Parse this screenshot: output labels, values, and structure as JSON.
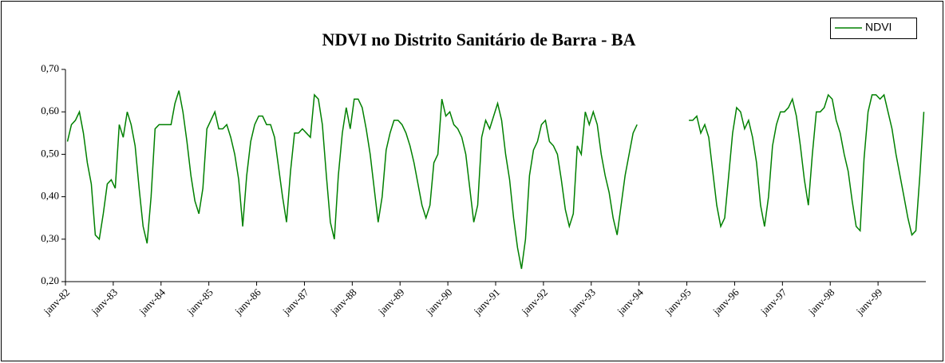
{
  "chart_data": {
    "type": "line",
    "title": "NDVI no Distrito Sanitário de Barra - BA",
    "categories": [
      "janv-82",
      null,
      null,
      null,
      null,
      null,
      null,
      null,
      null,
      null,
      null,
      null,
      "janv-83",
      null,
      null,
      null,
      null,
      null,
      null,
      null,
      null,
      null,
      null,
      null,
      "janv-84",
      null,
      null,
      null,
      null,
      null,
      null,
      null,
      null,
      null,
      null,
      null,
      "janv-85",
      null,
      null,
      null,
      null,
      null,
      null,
      null,
      null,
      null,
      null,
      null,
      "janv-86",
      null,
      null,
      null,
      null,
      null,
      null,
      null,
      null,
      null,
      null,
      null,
      "janv-87",
      null,
      null,
      null,
      null,
      null,
      null,
      null,
      null,
      null,
      null,
      null,
      "janv-88",
      null,
      null,
      null,
      null,
      null,
      null,
      null,
      null,
      null,
      null,
      null,
      "janv-89",
      null,
      null,
      null,
      null,
      null,
      null,
      null,
      null,
      null,
      null,
      null,
      "janv-90",
      null,
      null,
      null,
      null,
      null,
      null,
      null,
      null,
      null,
      null,
      null,
      "janv-91",
      null,
      null,
      null,
      null,
      null,
      null,
      null,
      null,
      null,
      null,
      null,
      "janv-92",
      null,
      null,
      null,
      null,
      null,
      null,
      null,
      null,
      null,
      null,
      null,
      "janv-93",
      null,
      null,
      null,
      null,
      null,
      null,
      null,
      null,
      null,
      null,
      null,
      "janv-94",
      null,
      null,
      null,
      null,
      null,
      null,
      null,
      null,
      null,
      null,
      null,
      "janv-95",
      null,
      null,
      null,
      null,
      null,
      null,
      null,
      null,
      null,
      null,
      null,
      "janv-96",
      null,
      null,
      null,
      null,
      null,
      null,
      null,
      null,
      null,
      null,
      null,
      "janv-97",
      null,
      null,
      null,
      null,
      null,
      null,
      null,
      null,
      null,
      null,
      null,
      "janv-98",
      null,
      null,
      null,
      null,
      null,
      null,
      null,
      null,
      null,
      null,
      null,
      "janv-99",
      null,
      null,
      null,
      null,
      null,
      null,
      null,
      null,
      null,
      null,
      null
    ],
    "series": [
      {
        "name": "NDVI",
        "color": "#008000",
        "values": [
          0.53,
          0.57,
          0.58,
          0.6,
          0.55,
          0.48,
          0.43,
          0.31,
          0.3,
          0.36,
          0.43,
          0.44,
          0.42,
          0.57,
          0.54,
          0.6,
          0.57,
          0.52,
          0.42,
          0.33,
          0.29,
          0.4,
          0.56,
          0.57,
          0.57,
          0.57,
          0.57,
          0.62,
          0.65,
          0.6,
          0.53,
          0.45,
          0.39,
          0.36,
          0.42,
          0.56,
          0.58,
          0.6,
          0.56,
          0.56,
          0.57,
          0.54,
          0.5,
          0.44,
          0.33,
          0.45,
          0.53,
          0.57,
          0.59,
          0.59,
          0.57,
          0.57,
          0.54,
          0.47,
          0.4,
          0.34,
          0.46,
          0.55,
          0.55,
          0.56,
          0.55,
          0.54,
          0.64,
          0.63,
          0.57,
          0.45,
          0.34,
          0.3,
          0.45,
          0.55,
          0.61,
          0.56,
          0.63,
          0.63,
          0.61,
          0.56,
          0.5,
          0.42,
          0.34,
          0.4,
          0.51,
          0.55,
          0.58,
          0.58,
          0.57,
          0.55,
          0.52,
          0.48,
          0.43,
          0.38,
          0.35,
          0.38,
          0.48,
          0.5,
          0.63,
          0.59,
          0.6,
          0.57,
          0.56,
          0.54,
          0.5,
          0.42,
          0.34,
          0.38,
          0.54,
          0.58,
          0.56,
          0.59,
          0.62,
          0.58,
          0.5,
          0.44,
          0.35,
          0.28,
          0.23,
          0.3,
          0.45,
          0.51,
          0.53,
          0.57,
          0.58,
          0.53,
          0.52,
          0.5,
          0.44,
          0.37,
          0.33,
          0.36,
          0.52,
          0.5,
          0.6,
          0.57,
          0.6,
          0.57,
          0.5,
          0.45,
          0.41,
          0.35,
          0.31,
          0.38,
          0.45,
          0.5,
          0.55,
          0.57,
          null,
          null,
          null,
          null,
          null,
          null,
          null,
          null,
          null,
          null,
          null,
          null,
          0.58,
          0.58,
          0.59,
          0.55,
          0.57,
          0.54,
          0.46,
          0.38,
          0.33,
          0.35,
          0.45,
          0.55,
          0.61,
          0.6,
          0.56,
          0.58,
          0.54,
          0.48,
          0.38,
          0.33,
          0.4,
          0.52,
          0.57,
          0.6,
          0.6,
          0.61,
          0.63,
          0.59,
          0.52,
          0.44,
          0.38,
          0.5,
          0.6,
          0.6,
          0.61,
          0.64,
          0.63,
          0.58,
          0.55,
          0.5,
          0.46,
          0.39,
          0.33,
          0.32,
          0.49,
          0.6,
          0.64,
          0.64,
          0.63,
          0.64,
          0.6,
          0.56,
          0.5,
          0.45,
          0.4,
          0.35,
          0.31,
          0.32,
          0.45,
          0.6
        ]
      }
    ],
    "ylim": [
      0.2,
      0.7
    ],
    "yticks": [
      {
        "value": 0.2,
        "label": "0,20"
      },
      {
        "value": 0.3,
        "label": "0,30"
      },
      {
        "value": 0.4,
        "label": "0,40"
      },
      {
        "value": 0.5,
        "label": "0,50"
      },
      {
        "value": 0.6,
        "label": "0,60"
      },
      {
        "value": 0.7,
        "label": "0,70"
      }
    ],
    "legend": "top-right"
  }
}
